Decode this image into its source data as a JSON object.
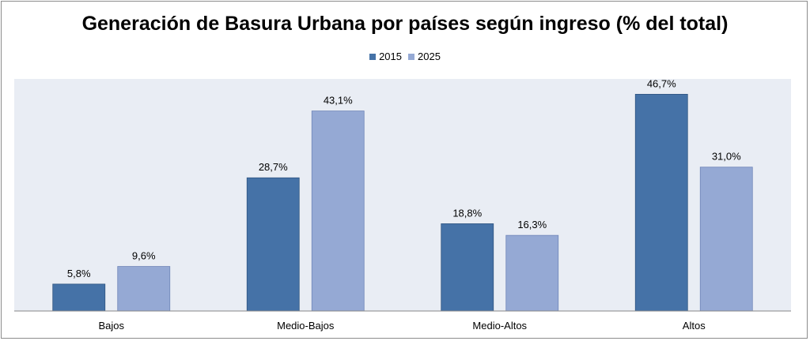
{
  "chart_data": {
    "type": "bar",
    "title": "Generación de Basura Urbana por países según ingreso (% del total)",
    "categories": [
      "Bajos",
      "Medio-Bajos",
      "Medio-Altos",
      "Altos"
    ],
    "series": [
      {
        "name": "2015",
        "values": [
          5.8,
          28.7,
          18.8,
          46.7
        ],
        "labels": [
          "5,8%",
          "28,7%",
          "18,8%",
          "46,7%"
        ],
        "color": "#4572a7"
      },
      {
        "name": "2025",
        "values": [
          9.6,
          43.1,
          16.3,
          31.0
        ],
        "labels": [
          "9,6%",
          "43,1%",
          "16,3%",
          "31,0%"
        ],
        "color": "#95a9d4"
      }
    ],
    "ylim": [
      0,
      50
    ],
    "legend_position": "top",
    "plot_background": "#e9edf4",
    "grid": false
  }
}
